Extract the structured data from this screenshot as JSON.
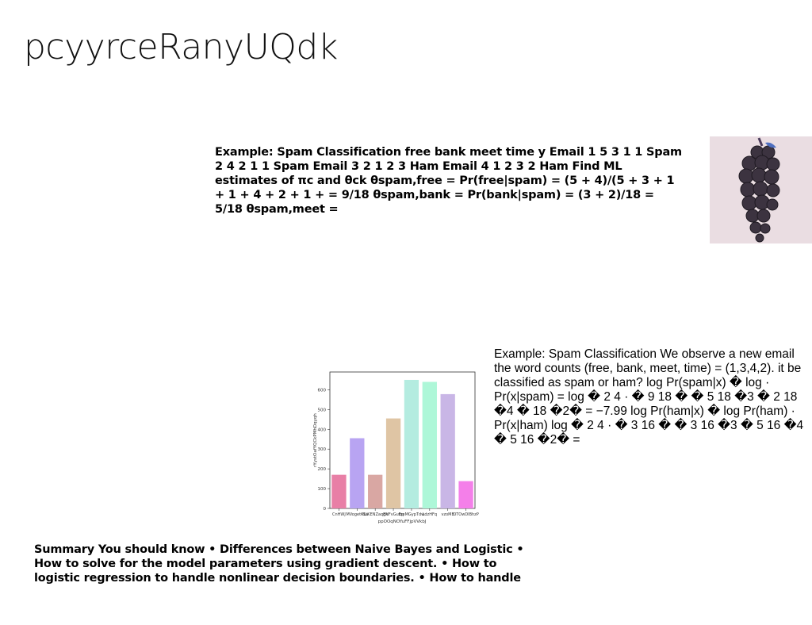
{
  "page": {
    "title": "pcyyrceRanyUQdk"
  },
  "text_blocks": {
    "spam_example_1": "Example: Spam Classification free bank meet time y Email 1 5 3 1 1 Spam 2 4 2 1 1 Spam Email 3 2 1 2 3 Ham Email 4 1 2 3 2 Ham Find ML estimates of πc and θck θspam,free = Pr(free|spam) = (5 + 4)/(5 + 3 + 1 + 1 + 4 + 2 + 1 + = 9/18 θspam,bank = Pr(bank|spam) = (3 + 2)/18 = 5/18 θspam,meet =",
    "spam_example_2": "Example: Spam Classification We observe a new email the word counts (free, bank, meet, time) = (1,3,4,2). it be classified as spam or ham? log Pr(spam|x) � log · Pr(x|spam) = log � 2 4 · � 9 18 � � 5 18 �3 � 2 18 �4 � 18 �2� = −7.99 log Pr(ham|x) � log Pr(ham) · Pr(x|ham) log � 2 4 · � 3 16 � � 3 16 �3 � 5 16 �4 � 5 16 �2� =",
    "summary": "Summary You should know • Differences between Naive Bayes and Logistic • How to solve for the model parameters using gradient descent. • How to logistic regression to handle nonlinear decision boundaries. • How to handle"
  },
  "image": {
    "icon": "grapes-photo",
    "background": "#eadde2"
  },
  "chart_data": {
    "type": "bar",
    "ylabel": "rYystOafYQCkPMhDqyqh",
    "xlabel": "ppOOqNOYuFFjpVVkbJ",
    "categories": [
      "CnHWJ",
      "MVogetKLa",
      "BLKENZaqEx",
      "gNFvGuEq",
      "fqeMGypTdw",
      "LdzHFq",
      "vzoMB",
      "OTOwDlBhzP"
    ],
    "values": [
      170,
      355,
      170,
      455,
      650,
      640,
      578,
      138
    ],
    "colors": [
      "#e87fa6",
      "#b8a4f2",
      "#d9a7a3",
      "#dfc5a4",
      "#b4ece0",
      "#aef7d8",
      "#c9b6e6",
      "#f47fe9"
    ],
    "ylim": [
      0,
      690
    ],
    "yticks": [
      0,
      100,
      200,
      300,
      400,
      500,
      600
    ]
  }
}
